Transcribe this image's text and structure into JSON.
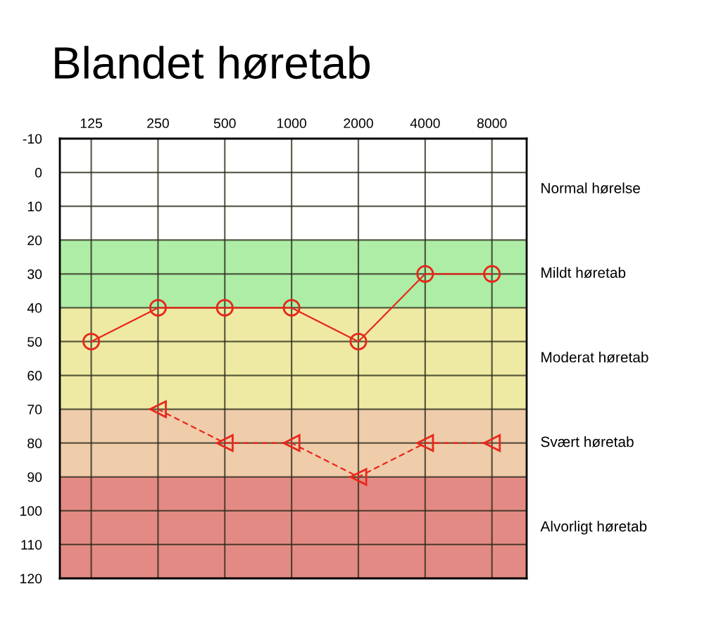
{
  "chart_data": {
    "type": "line",
    "title": "Blandet høretab",
    "categories": [
      "125",
      "250",
      "500",
      "1000",
      "2000",
      "4000",
      "8000"
    ],
    "series": [
      {
        "color": "#e8271c",
        "marker": "circle",
        "line_style": "solid",
        "values": [
          50,
          40,
          40,
          40,
          50,
          30,
          30
        ]
      },
      {
        "color": "#e8271c",
        "marker": "triangle",
        "line_style": "dashed",
        "values": [
          null,
          70,
          80,
          80,
          90,
          80,
          80
        ]
      }
    ],
    "ylim": [
      120,
      -10
    ],
    "yticks": [
      -10,
      0,
      10,
      20,
      30,
      40,
      50,
      60,
      70,
      80,
      90,
      100,
      110,
      120
    ],
    "bands": [
      {
        "axis": "y",
        "from": 20,
        "to": 40,
        "label": "Mildt høretab",
        "color": "#aeeda6"
      },
      {
        "axis": "y",
        "from": 40,
        "to": 70,
        "label": "Moderat høretab",
        "color": "#eeeaa4"
      },
      {
        "axis": "y",
        "from": 70,
        "to": 90,
        "label": "Svært høretab",
        "color": "#efccaa"
      },
      {
        "axis": "y",
        "from": 90,
        "to": 120,
        "label": "Alvorligt høretab",
        "color": "#e48a84"
      }
    ],
    "annotations": [
      "Normal hørelse"
    ],
    "grid": true,
    "legend": false
  }
}
